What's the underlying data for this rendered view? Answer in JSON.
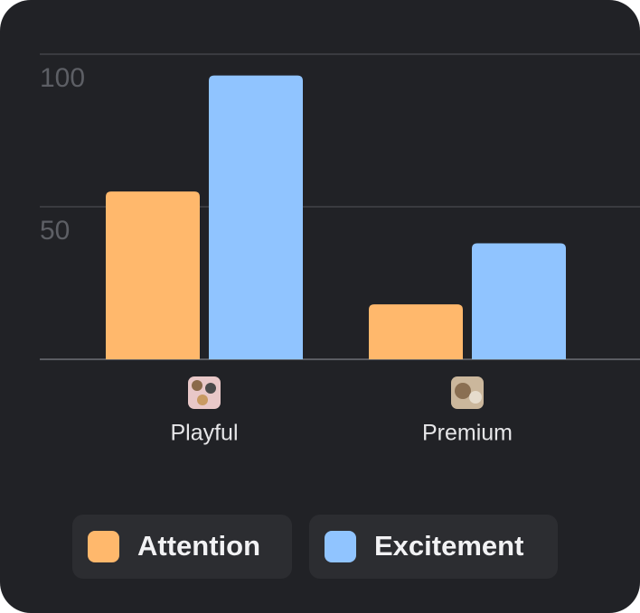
{
  "chart_data": {
    "type": "bar",
    "categories": [
      "Playful",
      "Premium"
    ],
    "series": [
      {
        "name": "Attention",
        "color": "#ffb86c",
        "values": [
          55,
          18
        ]
      },
      {
        "name": "Excitement",
        "color": "#90c4ff",
        "values": [
          93,
          38
        ]
      }
    ],
    "ylim": [
      0,
      100
    ],
    "yticks": [
      50,
      100
    ],
    "grid": true
  }
}
